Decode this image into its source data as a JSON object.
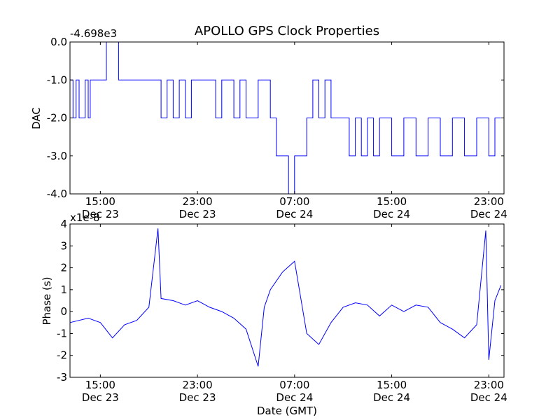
{
  "chart_data": [
    {
      "type": "line",
      "title": "APOLLO GPS Clock Properties",
      "xlabel": "",
      "ylabel": "DAC",
      "offset_label": "-4.698e3",
      "ylim": [
        -4.0,
        0.0
      ],
      "xlim_hours_label": "Dec 23 12:30 to Dec 25 00:15",
      "yticks": [
        "0.0",
        "-1.0",
        "-2.0",
        "-3.0",
        "-4.0"
      ],
      "ytick_values": [
        0.0,
        -1.0,
        -2.0,
        -3.0,
        -4.0
      ],
      "xticks": [
        {
          "time": "15:00",
          "date": "Dec 23"
        },
        {
          "time": "23:00",
          "date": "Dec 23"
        },
        {
          "time": "07:00",
          "date": "Dec 24"
        },
        {
          "time": "15:00",
          "date": "Dec 24"
        },
        {
          "time": "23:00",
          "date": "Dec 24"
        }
      ],
      "line_color": "#0000ff",
      "series": [
        {
          "x": [
            "Dec 23 12:30",
            "Dec 23 12:45",
            "Dec 23 13:00",
            "Dec 23 13:15",
            "Dec 23 13:45",
            "Dec 23 14:00",
            "Dec 23 14:10",
            "Dec 23 14:40",
            "Dec 23 15:30",
            "Dec 23 16:15",
            "Dec 23 16:30",
            "Dec 23 16:50",
            "Dec 23 17:00",
            "Dec 23 17:15",
            "Dec 23 17:30",
            "Dec 23 18:00",
            "Dec 23 19:00",
            "Dec 23 20:00",
            "Dec 23 20:30",
            "Dec 23 21:00",
            "Dec 23 21:30",
            "Dec 23 22:00",
            "Dec 23 22:30",
            "Dec 24 00:00",
            "Dec 24 00:30",
            "Dec 24 01:00",
            "Dec 24 02:00",
            "Dec 24 02:30",
            "Dec 24 03:00",
            "Dec 24 04:00",
            "Dec 24 05:00",
            "Dec 24 05:30",
            "Dec 24 06:00",
            "Dec 24 06:30",
            "Dec 24 07:00",
            "Dec 24 08:00",
            "Dec 24 08:30",
            "Dec 24 09:00",
            "Dec 24 09:30",
            "Dec 24 10:00",
            "Dec 24 11:00",
            "Dec 24 11:30",
            "Dec 24 12:00",
            "Dec 24 12:30",
            "Dec 24 13:00",
            "Dec 24 13:30",
            "Dec 24 14:00",
            "Dec 24 15:00",
            "Dec 24 16:00",
            "Dec 24 17:00",
            "Dec 24 18:00",
            "Dec 24 19:00",
            "Dec 24 20:00",
            "Dec 24 21:00",
            "Dec 24 22:00",
            "Dec 24 22:30",
            "Dec 24 23:00",
            "Dec 24 23:30",
            "Dec 25 00:00"
          ],
          "y": [
            -1.0,
            -2.0,
            -1.0,
            -2.0,
            -1.0,
            -2.0,
            -1.0,
            -1.0,
            0.0,
            0.0,
            -1.0,
            -1.0,
            -1.0,
            -1.0,
            -1.0,
            -1.0,
            -1.0,
            -2.0,
            -1.0,
            -2.0,
            -1.0,
            -2.0,
            -1.0,
            -1.0,
            -2.0,
            -1.0,
            -2.0,
            -1.0,
            -2.0,
            -1.0,
            -2.0,
            -3.0,
            -3.0,
            -4.0,
            -3.0,
            -2.0,
            -1.0,
            -2.0,
            -1.0,
            -2.0,
            -2.0,
            -3.0,
            -2.0,
            -3.0,
            -2.0,
            -3.0,
            -2.0,
            -3.0,
            -2.0,
            -3.0,
            -2.0,
            -3.0,
            -2.0,
            -3.0,
            -2.0,
            -2.0,
            -3.0,
            -2.0,
            -2.0
          ]
        }
      ]
    },
    {
      "type": "line",
      "title": "",
      "xlabel": "Date (GMT)",
      "ylabel": "Phase (s)",
      "offset_label": "x1e-8",
      "ylim": [
        -3,
        4
      ],
      "yticks": [
        "4",
        "3",
        "2",
        "1",
        "0",
        "-1",
        "-2",
        "-3"
      ],
      "ytick_values": [
        4,
        3,
        2,
        1,
        0,
        -1,
        -2,
        -3
      ],
      "xticks": [
        {
          "time": "15:00",
          "date": "Dec 23"
        },
        {
          "time": "23:00",
          "date": "Dec 23"
        },
        {
          "time": "07:00",
          "date": "Dec 24"
        },
        {
          "time": "15:00",
          "date": "Dec 24"
        },
        {
          "time": "23:00",
          "date": "Dec 24"
        }
      ],
      "line_color": "#0000ff",
      "series": [
        {
          "x": [
            "Dec 23 12:30",
            "Dec 23 14:00",
            "Dec 23 15:00",
            "Dec 23 16:00",
            "Dec 23 17:00",
            "Dec 23 18:00",
            "Dec 23 19:00",
            "Dec 23 19:45",
            "Dec 23 20:00",
            "Dec 23 21:00",
            "Dec 23 22:00",
            "Dec 23 23:00",
            "Dec 24 00:00",
            "Dec 24 01:00",
            "Dec 24 02:00",
            "Dec 24 03:00",
            "Dec 24 04:00",
            "Dec 24 04:30",
            "Dec 24 05:00",
            "Dec 24 06:00",
            "Dec 24 07:00",
            "Dec 24 08:00",
            "Dec 24 09:00",
            "Dec 24 10:00",
            "Dec 24 11:00",
            "Dec 24 12:00",
            "Dec 24 13:00",
            "Dec 24 14:00",
            "Dec 24 15:00",
            "Dec 24 16:00",
            "Dec 24 17:00",
            "Dec 24 18:00",
            "Dec 24 19:00",
            "Dec 24 20:00",
            "Dec 24 21:00",
            "Dec 24 22:00",
            "Dec 24 22:45",
            "Dec 24 23:00",
            "Dec 24 23:30",
            "Dec 25 00:00"
          ],
          "y": [
            -0.5,
            -0.3,
            -0.5,
            -1.2,
            -0.6,
            -0.4,
            0.2,
            3.8,
            0.6,
            0.5,
            0.3,
            0.5,
            0.2,
            0.0,
            -0.3,
            -0.8,
            -2.5,
            0.2,
            1.0,
            1.8,
            2.3,
            -1.0,
            -1.5,
            -0.5,
            0.2,
            0.4,
            0.3,
            -0.2,
            0.3,
            0.0,
            0.3,
            0.2,
            -0.5,
            -0.8,
            -1.2,
            -0.6,
            3.7,
            -2.2,
            0.5,
            1.2
          ]
        }
      ]
    }
  ]
}
